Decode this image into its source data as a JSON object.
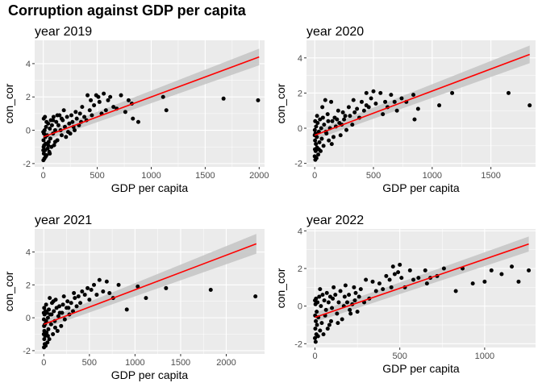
{
  "title": "Corruption against GDP per capita",
  "colors": {
    "panel_bg": "#ebebeb",
    "grid": "#ffffff",
    "points": "#000000",
    "fit_line": "#ff0000",
    "ci_band": "#c4c4c4"
  },
  "chart_data": [
    {
      "type": "scatter",
      "title": "year 2019",
      "xlabel": "GDP per capita",
      "ylabel": "con_cor",
      "xlim": [
        -80,
        2050
      ],
      "ylim": [
        -2.2,
        5.4
      ],
      "xticks": [
        0,
        500,
        1000,
        1500,
        2000
      ],
      "yticks": [
        -2,
        0,
        2,
        4
      ],
      "fit": {
        "x0": 0,
        "y0": -0.4,
        "x1": 2000,
        "y1": 4.4,
        "ci_lo": 3.9,
        "ci_hi": 4.9
      },
      "points": [
        [
          1990,
          1.8
        ],
        [
          1670,
          1.9
        ],
        [
          1140,
          1.2
        ],
        [
          1110,
          2.0
        ],
        [
          880,
          0.5
        ],
        [
          830,
          0.7
        ],
        [
          820,
          1.6
        ],
        [
          790,
          1.8
        ],
        [
          760,
          1.1
        ],
        [
          720,
          2.1
        ],
        [
          680,
          1.3
        ],
        [
          650,
          1.4
        ],
        [
          620,
          2.0
        ],
        [
          600,
          1.8
        ],
        [
          580,
          1.2
        ],
        [
          560,
          2.2
        ],
        [
          540,
          1.0
        ],
        [
          520,
          1.7
        ],
        [
          510,
          2.0
        ],
        [
          490,
          2.1
        ],
        [
          470,
          1.5
        ],
        [
          450,
          0.9
        ],
        [
          440,
          1.8
        ],
        [
          430,
          1.2
        ],
        [
          410,
          2.1
        ],
        [
          400,
          0.6
        ],
        [
          380,
          0.8
        ],
        [
          360,
          1.4
        ],
        [
          340,
          1.0
        ],
        [
          330,
          0.3
        ],
        [
          310,
          0.7
        ],
        [
          300,
          1.1
        ],
        [
          290,
          0.0
        ],
        [
          270,
          0.5
        ],
        [
          260,
          0.9
        ],
        [
          250,
          -0.2
        ],
        [
          240,
          0.4
        ],
        [
          220,
          0.8
        ],
        [
          210,
          -0.4
        ],
        [
          200,
          0.2
        ],
        [
          190,
          1.2
        ],
        [
          180,
          0.6
        ],
        [
          170,
          -0.3
        ],
        [
          160,
          0.0
        ],
        [
          150,
          0.9
        ],
        [
          140,
          0.3
        ],
        [
          130,
          -0.6
        ],
        [
          120,
          0.5
        ],
        [
          110,
          0.0
        ],
        [
          100,
          -0.9
        ],
        [
          95,
          0.8
        ],
        [
          90,
          -0.2
        ],
        [
          80,
          0.3
        ],
        [
          75,
          -1.0
        ],
        [
          70,
          0.6
        ],
        [
          65,
          -0.5
        ],
        [
          60,
          0.1
        ],
        [
          55,
          -1.3
        ],
        [
          50,
          -0.7
        ],
        [
          45,
          0.4
        ],
        [
          40,
          -1.1
        ],
        [
          35,
          -0.3
        ],
        [
          30,
          -1.5
        ],
        [
          25,
          0.2
        ],
        [
          22,
          -0.8
        ],
        [
          20,
          -1.6
        ],
        [
          18,
          -0.4
        ],
        [
          15,
          -1.2
        ],
        [
          12,
          0.0
        ],
        [
          10,
          -1.7
        ],
        [
          8,
          -0.9
        ],
        [
          6,
          -0.2
        ],
        [
          5,
          -1.4
        ],
        [
          4,
          0.7
        ],
        [
          3,
          -1.0
        ],
        [
          2,
          -0.6
        ],
        [
          1,
          -1.8
        ],
        [
          0,
          -0.1
        ],
        [
          0,
          -1.2
        ],
        [
          15,
          0.8
        ],
        [
          30,
          0.5
        ],
        [
          45,
          -0.9
        ],
        [
          60,
          -1.4
        ],
        [
          90,
          0.6
        ],
        [
          110,
          -0.7
        ],
        [
          130,
          0.9
        ],
        [
          170,
          0.7
        ],
        [
          230,
          -0.1
        ],
        [
          280,
          0.2
        ],
        [
          350,
          0.5
        ]
      ]
    },
    {
      "type": "scatter",
      "title": "year 2020",
      "xlabel": "GDP per capita",
      "ylabel": "con_cor",
      "xlim": [
        -70,
        1880
      ],
      "ylim": [
        -2.2,
        5.0
      ],
      "xticks": [
        0,
        500,
        1000,
        1500
      ],
      "yticks": [
        -2,
        0,
        2,
        4
      ],
      "fit": {
        "x0": 0,
        "y0": -0.4,
        "x1": 1830,
        "y1": 4.2,
        "ci_lo": 3.7,
        "ci_hi": 4.7
      },
      "points": [
        [
          1830,
          1.3
        ],
        [
          1650,
          2.0
        ],
        [
          1170,
          2.0
        ],
        [
          1060,
          1.3
        ],
        [
          880,
          1.1
        ],
        [
          850,
          0.5
        ],
        [
          840,
          1.9
        ],
        [
          780,
          1.5
        ],
        [
          740,
          1.7
        ],
        [
          700,
          1.0
        ],
        [
          680,
          1.5
        ],
        [
          650,
          1.9
        ],
        [
          620,
          1.2
        ],
        [
          600,
          1.5
        ],
        [
          580,
          0.8
        ],
        [
          560,
          2.0
        ],
        [
          520,
          1.4
        ],
        [
          500,
          2.1
        ],
        [
          480,
          1.7
        ],
        [
          460,
          1.2
        ],
        [
          440,
          2.0
        ],
        [
          420,
          1.0
        ],
        [
          400,
          1.5
        ],
        [
          380,
          0.6
        ],
        [
          360,
          1.1
        ],
        [
          340,
          0.9
        ],
        [
          320,
          0.2
        ],
        [
          300,
          0.7
        ],
        [
          290,
          1.2
        ],
        [
          270,
          -0.1
        ],
        [
          250,
          0.5
        ],
        [
          240,
          0.9
        ],
        [
          220,
          -0.4
        ],
        [
          210,
          0.3
        ],
        [
          200,
          1.0
        ],
        [
          180,
          0.1
        ],
        [
          170,
          0.6
        ],
        [
          160,
          -0.5
        ],
        [
          150,
          0.4
        ],
        [
          140,
          1.5
        ],
        [
          130,
          0.0
        ],
        [
          120,
          -0.7
        ],
        [
          110,
          0.8
        ],
        [
          100,
          -0.3
        ],
        [
          90,
          1.6
        ],
        [
          80,
          0.2
        ],
        [
          75,
          -1.0
        ],
        [
          70,
          0.6
        ],
        [
          60,
          -0.6
        ],
        [
          55,
          0.0
        ],
        [
          50,
          -1.3
        ],
        [
          45,
          0.5
        ],
        [
          40,
          -0.8
        ],
        [
          35,
          -0.2
        ],
        [
          30,
          -1.5
        ],
        [
          25,
          0.3
        ],
        [
          20,
          -1.1
        ],
        [
          18,
          -0.5
        ],
        [
          15,
          -1.7
        ],
        [
          12,
          0.1
        ],
        [
          10,
          -0.9
        ],
        [
          8,
          -1.3
        ],
        [
          6,
          -0.3
        ],
        [
          5,
          -1.8
        ],
        [
          4,
          0.4
        ],
        [
          3,
          -0.7
        ],
        [
          2,
          -1.2
        ],
        [
          1,
          -0.1
        ],
        [
          0,
          -1.6
        ],
        [
          0,
          -0.4
        ],
        [
          20,
          0.7
        ],
        [
          35,
          -1.2
        ],
        [
          65,
          1.2
        ],
        [
          95,
          -0.2
        ],
        [
          115,
          0.4
        ],
        [
          145,
          -0.9
        ],
        [
          190,
          0.5
        ],
        [
          230,
          0.2
        ],
        [
          260,
          0.7
        ],
        [
          330,
          1.6
        ],
        [
          440,
          1.3
        ]
      ]
    },
    {
      "type": "scatter",
      "title": "year 2021",
      "xlabel": "GDP per capita",
      "ylabel": "con_cor",
      "xlim": [
        -100,
        2420
      ],
      "ylim": [
        -2.2,
        5.4
      ],
      "xticks": [
        0,
        500,
        1000,
        1500,
        2000
      ],
      "yticks": [
        -2,
        0,
        2,
        4
      ],
      "fit": {
        "x0": 0,
        "y0": -0.4,
        "x1": 2330,
        "y1": 4.5,
        "ci_lo": 3.9,
        "ci_hi": 5.1
      },
      "points": [
        [
          2320,
          1.3
        ],
        [
          1830,
          1.7
        ],
        [
          1340,
          1.8
        ],
        [
          1120,
          1.2
        ],
        [
          1030,
          1.9
        ],
        [
          910,
          0.5
        ],
        [
          820,
          2.0
        ],
        [
          760,
          1.2
        ],
        [
          720,
          1.5
        ],
        [
          690,
          2.2
        ],
        [
          650,
          1.6
        ],
        [
          610,
          2.3
        ],
        [
          580,
          1.4
        ],
        [
          550,
          2.0
        ],
        [
          520,
          1.7
        ],
        [
          500,
          1.1
        ],
        [
          480,
          1.8
        ],
        [
          450,
          1.4
        ],
        [
          420,
          1.6
        ],
        [
          400,
          0.9
        ],
        [
          380,
          1.3
        ],
        [
          360,
          0.7
        ],
        [
          340,
          1.2
        ],
        [
          320,
          0.4
        ],
        [
          300,
          0.9
        ],
        [
          280,
          0.2
        ],
        [
          260,
          1.0
        ],
        [
          250,
          0.6
        ],
        [
          230,
          -0.1
        ],
        [
          210,
          0.8
        ],
        [
          200,
          0.3
        ],
        [
          190,
          -0.5
        ],
        [
          170,
          0.7
        ],
        [
          160,
          0.1
        ],
        [
          150,
          -0.8
        ],
        [
          140,
          0.6
        ],
        [
          130,
          1.1
        ],
        [
          120,
          -0.2
        ],
        [
          110,
          0.4
        ],
        [
          100,
          -1.0
        ],
        [
          90,
          0.9
        ],
        [
          80,
          -0.4
        ],
        [
          70,
          0.2
        ],
        [
          65,
          1.2
        ],
        [
          60,
          -1.3
        ],
        [
          55,
          0.5
        ],
        [
          50,
          -0.7
        ],
        [
          45,
          0.0
        ],
        [
          40,
          -1.5
        ],
        [
          35,
          0.3
        ],
        [
          30,
          -0.9
        ],
        [
          25,
          -0.2
        ],
        [
          20,
          -1.7
        ],
        [
          18,
          0.4
        ],
        [
          15,
          -1.1
        ],
        [
          12,
          -0.4
        ],
        [
          10,
          -1.6
        ],
        [
          8,
          0.2
        ],
        [
          6,
          -0.8
        ],
        [
          5,
          -1.3
        ],
        [
          4,
          0.6
        ],
        [
          3,
          -0.5
        ],
        [
          2,
          -1.8
        ],
        [
          1,
          -0.1
        ],
        [
          0,
          -1.0
        ],
        [
          0,
          0.3
        ],
        [
          25,
          0.8
        ],
        [
          45,
          -1.1
        ],
        [
          85,
          0.2
        ],
        [
          105,
          1.0
        ],
        [
          125,
          -0.6
        ],
        [
          175,
          0.3
        ],
        [
          220,
          1.3
        ],
        [
          270,
          0.6
        ],
        [
          330,
          1.5
        ]
      ]
    },
    {
      "type": "scatter",
      "title": "year 2022",
      "xlabel": "GDP per capita",
      "ylabel": "con_cor",
      "xlim": [
        -50,
        1300
      ],
      "ylim": [
        -2.2,
        4.1
      ],
      "xticks": [
        0,
        500,
        1000
      ],
      "yticks": [
        -2,
        0,
        2,
        4
      ],
      "fit": {
        "x0": 0,
        "y0": -0.6,
        "x1": 1260,
        "y1": 3.3,
        "ci_lo": 2.9,
        "ci_hi": 3.7
      },
      "points": [
        [
          1260,
          1.9
        ],
        [
          1200,
          1.3
        ],
        [
          1160,
          2.1
        ],
        [
          1100,
          1.7
        ],
        [
          1040,
          1.9
        ],
        [
          1000,
          1.3
        ],
        [
          930,
          1.2
        ],
        [
          870,
          2.0
        ],
        [
          830,
          0.8
        ],
        [
          760,
          2.0
        ],
        [
          720,
          1.6
        ],
        [
          680,
          1.5
        ],
        [
          660,
          1.2
        ],
        [
          650,
          1.9
        ],
        [
          610,
          1.5
        ],
        [
          580,
          1.4
        ],
        [
          560,
          1.9
        ],
        [
          530,
          1.0
        ],
        [
          510,
          1.5
        ],
        [
          500,
          2.2
        ],
        [
          490,
          1.8
        ],
        [
          470,
          1.7
        ],
        [
          460,
          2.1
        ],
        [
          450,
          1.0
        ],
        [
          440,
          1.4
        ],
        [
          420,
          1.6
        ],
        [
          400,
          0.9
        ],
        [
          380,
          1.2
        ],
        [
          360,
          0.8
        ],
        [
          340,
          1.3
        ],
        [
          320,
          0.4
        ],
        [
          300,
          1.4
        ],
        [
          290,
          0.2
        ],
        [
          270,
          0.9
        ],
        [
          260,
          0.5
        ],
        [
          250,
          -0.3
        ],
        [
          240,
          0.7
        ],
        [
          230,
          1.0
        ],
        [
          220,
          0.1
        ],
        [
          210,
          -0.4
        ],
        [
          200,
          0.6
        ],
        [
          190,
          0.2
        ],
        [
          180,
          1.1
        ],
        [
          170,
          0.0
        ],
        [
          160,
          -0.7
        ],
        [
          150,
          0.8
        ],
        [
          140,
          0.2
        ],
        [
          130,
          -0.4
        ],
        [
          120,
          0.6
        ],
        [
          110,
          1.0
        ],
        [
          100,
          -0.1
        ],
        [
          95,
          -0.8
        ],
        [
          90,
          0.5
        ],
        [
          80,
          0.2
        ],
        [
          75,
          -1.2
        ],
        [
          70,
          0.7
        ],
        [
          60,
          -0.5
        ],
        [
          55,
          0.3
        ],
        [
          50,
          -1.5
        ],
        [
          45,
          0.6
        ],
        [
          40,
          -0.9
        ],
        [
          35,
          0.0
        ],
        [
          30,
          -1.3
        ],
        [
          25,
          0.5
        ],
        [
          20,
          -0.6
        ],
        [
          18,
          -1.6
        ],
        [
          15,
          0.2
        ],
        [
          12,
          -1.0
        ],
        [
          10,
          -0.3
        ],
        [
          8,
          -1.5
        ],
        [
          6,
          0.4
        ],
        [
          5,
          -0.8
        ],
        [
          4,
          -1.9
        ],
        [
          3,
          0.1
        ],
        [
          2,
          -1.2
        ],
        [
          1,
          -0.5
        ],
        [
          0,
          -1.7
        ],
        [
          0,
          0.3
        ],
        [
          30,
          0.9
        ],
        [
          65,
          -0.2
        ],
        [
          85,
          -1.0
        ],
        [
          105,
          0.4
        ],
        [
          135,
          -0.9
        ],
        [
          175,
          0.5
        ],
        [
          205,
          -0.2
        ],
        [
          235,
          0.3
        ]
      ]
    }
  ]
}
